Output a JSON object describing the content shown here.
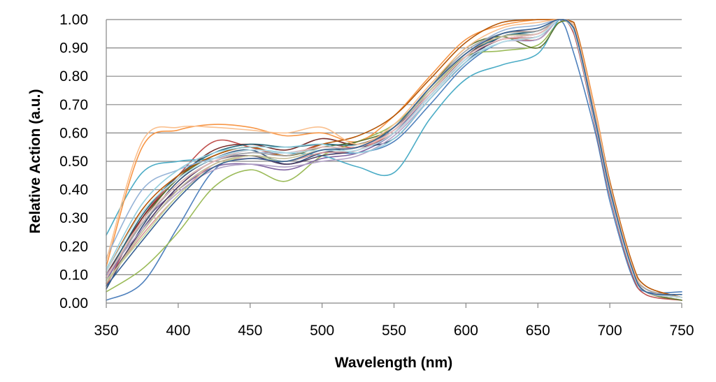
{
  "chart_data": {
    "type": "line",
    "title": "",
    "xlabel": "Wavelength (nm)",
    "ylabel": "Relative Action (a.u.)",
    "xlim": [
      350,
      750
    ],
    "ylim": [
      0,
      1
    ],
    "grid": "horizontal",
    "legend": "none",
    "x_ticks": [
      "350",
      "400",
      "450",
      "500",
      "550",
      "600",
      "650",
      "700",
      "750"
    ],
    "y_ticks": [
      "0.00",
      "0.10",
      "0.20",
      "0.30",
      "0.40",
      "0.50",
      "0.60",
      "0.70",
      "0.80",
      "0.90",
      "1.00"
    ],
    "x": [
      350,
      375,
      400,
      425,
      450,
      475,
      500,
      525,
      550,
      575,
      600,
      625,
      650,
      665,
      675,
      690,
      700,
      715,
      725,
      750
    ],
    "series": [
      {
        "color": "#4f81bd",
        "values": [
          0.01,
          0.07,
          0.27,
          0.47,
          0.52,
          0.5,
          0.53,
          0.53,
          0.57,
          0.7,
          0.84,
          0.92,
          0.93,
          1.0,
          0.88,
          0.6,
          0.36,
          0.1,
          0.04,
          0.04
        ]
      },
      {
        "color": "#c0504d",
        "values": [
          0.06,
          0.3,
          0.45,
          0.57,
          0.55,
          0.52,
          0.56,
          0.55,
          0.6,
          0.73,
          0.86,
          0.93,
          0.93,
          1.0,
          0.95,
          0.62,
          0.38,
          0.11,
          0.03,
          0.01
        ]
      },
      {
        "color": "#9bbb59",
        "values": [
          0.04,
          0.12,
          0.25,
          0.41,
          0.47,
          0.43,
          0.52,
          0.57,
          0.63,
          0.75,
          0.87,
          0.89,
          0.91,
          0.99,
          0.96,
          0.64,
          0.4,
          0.12,
          0.04,
          0.01
        ]
      },
      {
        "color": "#8064a2",
        "values": [
          0.08,
          0.28,
          0.4,
          0.48,
          0.49,
          0.47,
          0.51,
          0.53,
          0.6,
          0.74,
          0.87,
          0.93,
          0.95,
          1.0,
          0.97,
          0.65,
          0.4,
          0.13,
          0.05,
          0.02
        ]
      },
      {
        "color": "#4bacc6",
        "values": [
          0.24,
          0.46,
          0.5,
          0.51,
          0.54,
          0.53,
          0.52,
          0.48,
          0.46,
          0.65,
          0.79,
          0.84,
          0.88,
          1.0,
          0.97,
          0.65,
          0.4,
          0.13,
          0.04,
          0.02
        ]
      },
      {
        "color": "#f79646",
        "values": [
          0.13,
          0.55,
          0.61,
          0.63,
          0.62,
          0.59,
          0.6,
          0.57,
          0.66,
          0.8,
          0.93,
          0.98,
          1.0,
          1.0,
          0.99,
          0.68,
          0.43,
          0.15,
          0.06,
          0.02
        ]
      },
      {
        "color": "#2c4d75",
        "values": [
          0.05,
          0.27,
          0.43,
          0.51,
          0.54,
          0.49,
          0.53,
          0.55,
          0.58,
          0.72,
          0.85,
          0.94,
          0.95,
          1.0,
          0.97,
          0.63,
          0.39,
          0.12,
          0.04,
          0.02
        ]
      },
      {
        "color": "#772c2a",
        "values": [
          0.1,
          0.3,
          0.44,
          0.54,
          0.56,
          0.54,
          0.58,
          0.56,
          0.62,
          0.74,
          0.87,
          0.95,
          0.96,
          1.0,
          0.98,
          0.66,
          0.42,
          0.14,
          0.05,
          0.02
        ]
      },
      {
        "color": "#5f7530",
        "values": [
          0.09,
          0.29,
          0.44,
          0.52,
          0.55,
          0.52,
          0.55,
          0.57,
          0.62,
          0.76,
          0.9,
          0.94,
          0.9,
          0.99,
          0.96,
          0.65,
          0.4,
          0.13,
          0.04,
          0.01
        ]
      },
      {
        "color": "#4d3b62",
        "values": [
          0.07,
          0.26,
          0.41,
          0.5,
          0.52,
          0.49,
          0.52,
          0.54,
          0.6,
          0.73,
          0.86,
          0.93,
          0.94,
          1.0,
          0.97,
          0.64,
          0.4,
          0.13,
          0.04,
          0.02
        ]
      },
      {
        "color": "#276a7c",
        "values": [
          0.09,
          0.31,
          0.45,
          0.53,
          0.56,
          0.55,
          0.56,
          0.56,
          0.61,
          0.74,
          0.87,
          0.94,
          0.96,
          1.0,
          0.97,
          0.64,
          0.4,
          0.13,
          0.04,
          0.02
        ]
      },
      {
        "color": "#b65708",
        "values": [
          0.11,
          0.33,
          0.45,
          0.52,
          0.55,
          0.52,
          0.56,
          0.59,
          0.66,
          0.79,
          0.92,
          0.99,
          1.0,
          1.0,
          0.99,
          0.67,
          0.43,
          0.15,
          0.06,
          0.02
        ]
      },
      {
        "color": "#95b3d7",
        "values": [
          0.16,
          0.4,
          0.47,
          0.51,
          0.53,
          0.53,
          0.55,
          0.55,
          0.61,
          0.75,
          0.88,
          0.96,
          0.98,
          1.0,
          0.98,
          0.66,
          0.41,
          0.14,
          0.05,
          0.02
        ]
      },
      {
        "color": "#d99694",
        "values": [
          0.07,
          0.24,
          0.38,
          0.49,
          0.51,
          0.5,
          0.53,
          0.54,
          0.61,
          0.74,
          0.87,
          0.93,
          0.94,
          1.0,
          0.96,
          0.63,
          0.39,
          0.12,
          0.04,
          0.02
        ]
      },
      {
        "color": "#c3d69b",
        "values": [
          0.08,
          0.23,
          0.38,
          0.48,
          0.52,
          0.5,
          0.54,
          0.55,
          0.62,
          0.75,
          0.88,
          0.94,
          0.95,
          1.0,
          0.97,
          0.64,
          0.4,
          0.13,
          0.04,
          0.02
        ]
      },
      {
        "color": "#b2a2c7",
        "values": [
          0.1,
          0.26,
          0.39,
          0.47,
          0.49,
          0.48,
          0.5,
          0.52,
          0.59,
          0.72,
          0.85,
          0.92,
          0.93,
          1.0,
          0.96,
          0.63,
          0.39,
          0.12,
          0.04,
          0.02
        ]
      },
      {
        "color": "#93cddd",
        "values": [
          0.12,
          0.35,
          0.47,
          0.53,
          0.55,
          0.55,
          0.56,
          0.53,
          0.58,
          0.72,
          0.85,
          0.92,
          0.94,
          1.0,
          0.96,
          0.63,
          0.39,
          0.12,
          0.04,
          0.02
        ]
      },
      {
        "color": "#fac08f",
        "values": [
          0.15,
          0.57,
          0.62,
          0.62,
          0.61,
          0.6,
          0.62,
          0.56,
          0.63,
          0.77,
          0.9,
          0.97,
          0.99,
          1.0,
          0.98,
          0.67,
          0.42,
          0.14,
          0.05,
          0.02
        ]
      },
      {
        "color": "#a6a6a6",
        "values": [
          0.09,
          0.28,
          0.42,
          0.5,
          0.53,
          0.52,
          0.55,
          0.55,
          0.62,
          0.76,
          0.89,
          0.95,
          0.96,
          1.0,
          0.97,
          0.65,
          0.41,
          0.13,
          0.05,
          0.02
        ]
      },
      {
        "color": "#c4bd97",
        "values": [
          0.07,
          0.25,
          0.4,
          0.49,
          0.52,
          0.51,
          0.54,
          0.55,
          0.62,
          0.75,
          0.88,
          0.94,
          0.95,
          1.0,
          0.97,
          0.64,
          0.4,
          0.13,
          0.04,
          0.02
        ]
      },
      {
        "color": "#e6b9b8",
        "values": [
          0.09,
          0.29,
          0.42,
          0.5,
          0.54,
          0.53,
          0.55,
          0.55,
          0.61,
          0.74,
          0.87,
          0.93,
          0.95,
          1.0,
          0.97,
          0.64,
          0.4,
          0.13,
          0.04,
          0.02
        ]
      },
      {
        "color": "#b7dee8",
        "values": [
          0.11,
          0.32,
          0.44,
          0.51,
          0.54,
          0.53,
          0.54,
          0.54,
          0.6,
          0.73,
          0.86,
          0.92,
          0.94,
          1.0,
          0.96,
          0.63,
          0.39,
          0.12,
          0.04,
          0.02
        ]
      },
      {
        "color": "#376092",
        "values": [
          0.06,
          0.22,
          0.37,
          0.48,
          0.51,
          0.5,
          0.54,
          0.55,
          0.62,
          0.76,
          0.88,
          0.95,
          0.97,
          1.0,
          0.97,
          0.64,
          0.4,
          0.13,
          0.04,
          0.03
        ]
      }
    ]
  }
}
